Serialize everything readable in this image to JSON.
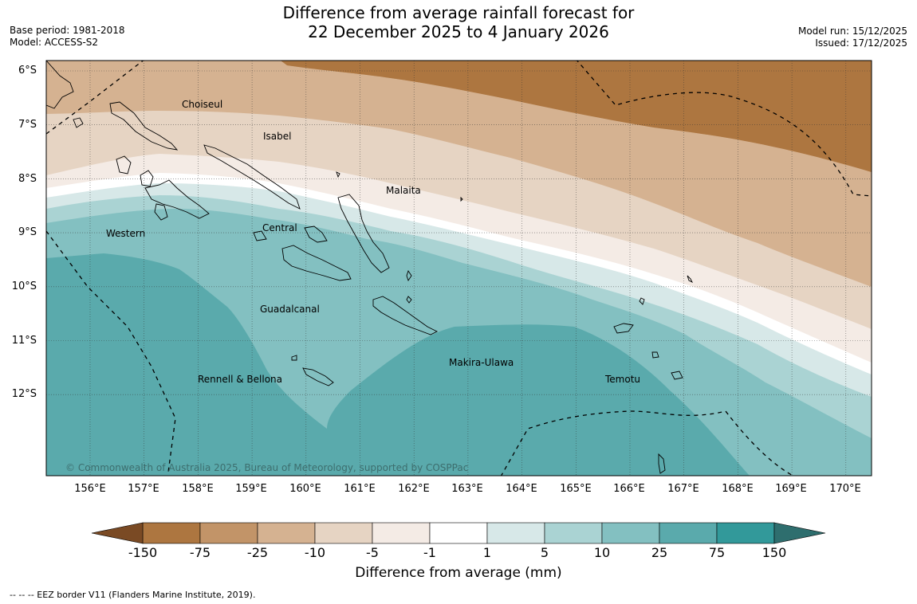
{
  "header": {
    "title_line1": "Difference from average rainfall forecast for",
    "title_line2": "22 December 2025 to 4 January 2026",
    "base_period": "Base period: 1981-2018",
    "model": "Model: ACCESS-S2",
    "model_run": "Model run: 15/12/2025",
    "issued": "Issued: 17/12/2025"
  },
  "map": {
    "lat_labels": [
      "6°S",
      "7°S",
      "8°S",
      "9°S",
      "10°S",
      "11°S",
      "12°S"
    ],
    "lon_labels": [
      "156°E",
      "157°E",
      "158°E",
      "159°E",
      "160°E",
      "161°E",
      "162°E",
      "163°E",
      "164°E",
      "165°E",
      "166°E",
      "167°E",
      "168°E",
      "169°E",
      "170°E"
    ],
    "regions": [
      "Choiseul",
      "Isabel",
      "Malaita",
      "Western",
      "Central",
      "Guadalcanal",
      "Makira-Ulawa",
      "Rennell & Bellona",
      "Temotu"
    ],
    "copyright": "© Commonwealth of Australia 2025, Bureau of Meteorology, supported by COSPPac"
  },
  "legend": {
    "ticks": [
      "-150",
      "-75",
      "-25",
      "-10",
      "-5",
      "-1",
      "1",
      "5",
      "10",
      "25",
      "75",
      "150"
    ],
    "colors": [
      "#7a4a24",
      "#ad7640",
      "#c29468",
      "#d5b291",
      "#e6d4c3",
      "#f4ebe5",
      "#ffffff",
      "#d7e8e8",
      "#aad3d3",
      "#83c0c1",
      "#5aaaac",
      "#32999a",
      "#2e6e6e"
    ],
    "title": "Difference from average (mm)",
    "eez_note": "--  --  -- EEZ border V11 (Flanders Marine Institute, 2019)."
  }
}
